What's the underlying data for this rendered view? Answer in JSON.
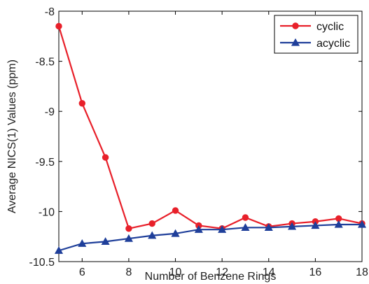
{
  "chart_data": {
    "type": "line",
    "xlabel": "Number of Benzene Rings",
    "ylabel": "Average NICS(1) Values (ppm)",
    "xlim": [
      5,
      18
    ],
    "ylim": [
      -10.5,
      -8
    ],
    "xticks": [
      6,
      8,
      10,
      12,
      14,
      16,
      18
    ],
    "yticks": [
      -8,
      -8.5,
      -9,
      -9.5,
      -10,
      -10.5
    ],
    "xtick_labels": [
      "6",
      "8",
      "10",
      "12",
      "14",
      "16",
      "18"
    ],
    "ytick_labels": [
      "-8",
      "-8.5",
      "-9",
      "-9.5",
      "-10",
      "-10.5"
    ],
    "grid": false,
    "legend_position": "top-right",
    "x": [
      5,
      6,
      7,
      8,
      9,
      10,
      11,
      12,
      13,
      14,
      15,
      16,
      17,
      18
    ],
    "series": [
      {
        "name": "cyclic",
        "color": "#e8202a",
        "marker": "circle",
        "values": [
          -8.15,
          -8.92,
          -9.46,
          -10.17,
          -10.12,
          -9.99,
          -10.14,
          -10.17,
          -10.06,
          -10.15,
          -10.12,
          -10.1,
          -10.07,
          -10.12
        ]
      },
      {
        "name": "acyclic",
        "color": "#1f3f9a",
        "marker": "triangle",
        "values": [
          -10.39,
          -10.32,
          -10.3,
          -10.27,
          -10.24,
          -10.22,
          -10.18,
          -10.18,
          -10.16,
          -10.16,
          -10.15,
          -10.14,
          -10.13,
          -10.13
        ]
      }
    ]
  }
}
